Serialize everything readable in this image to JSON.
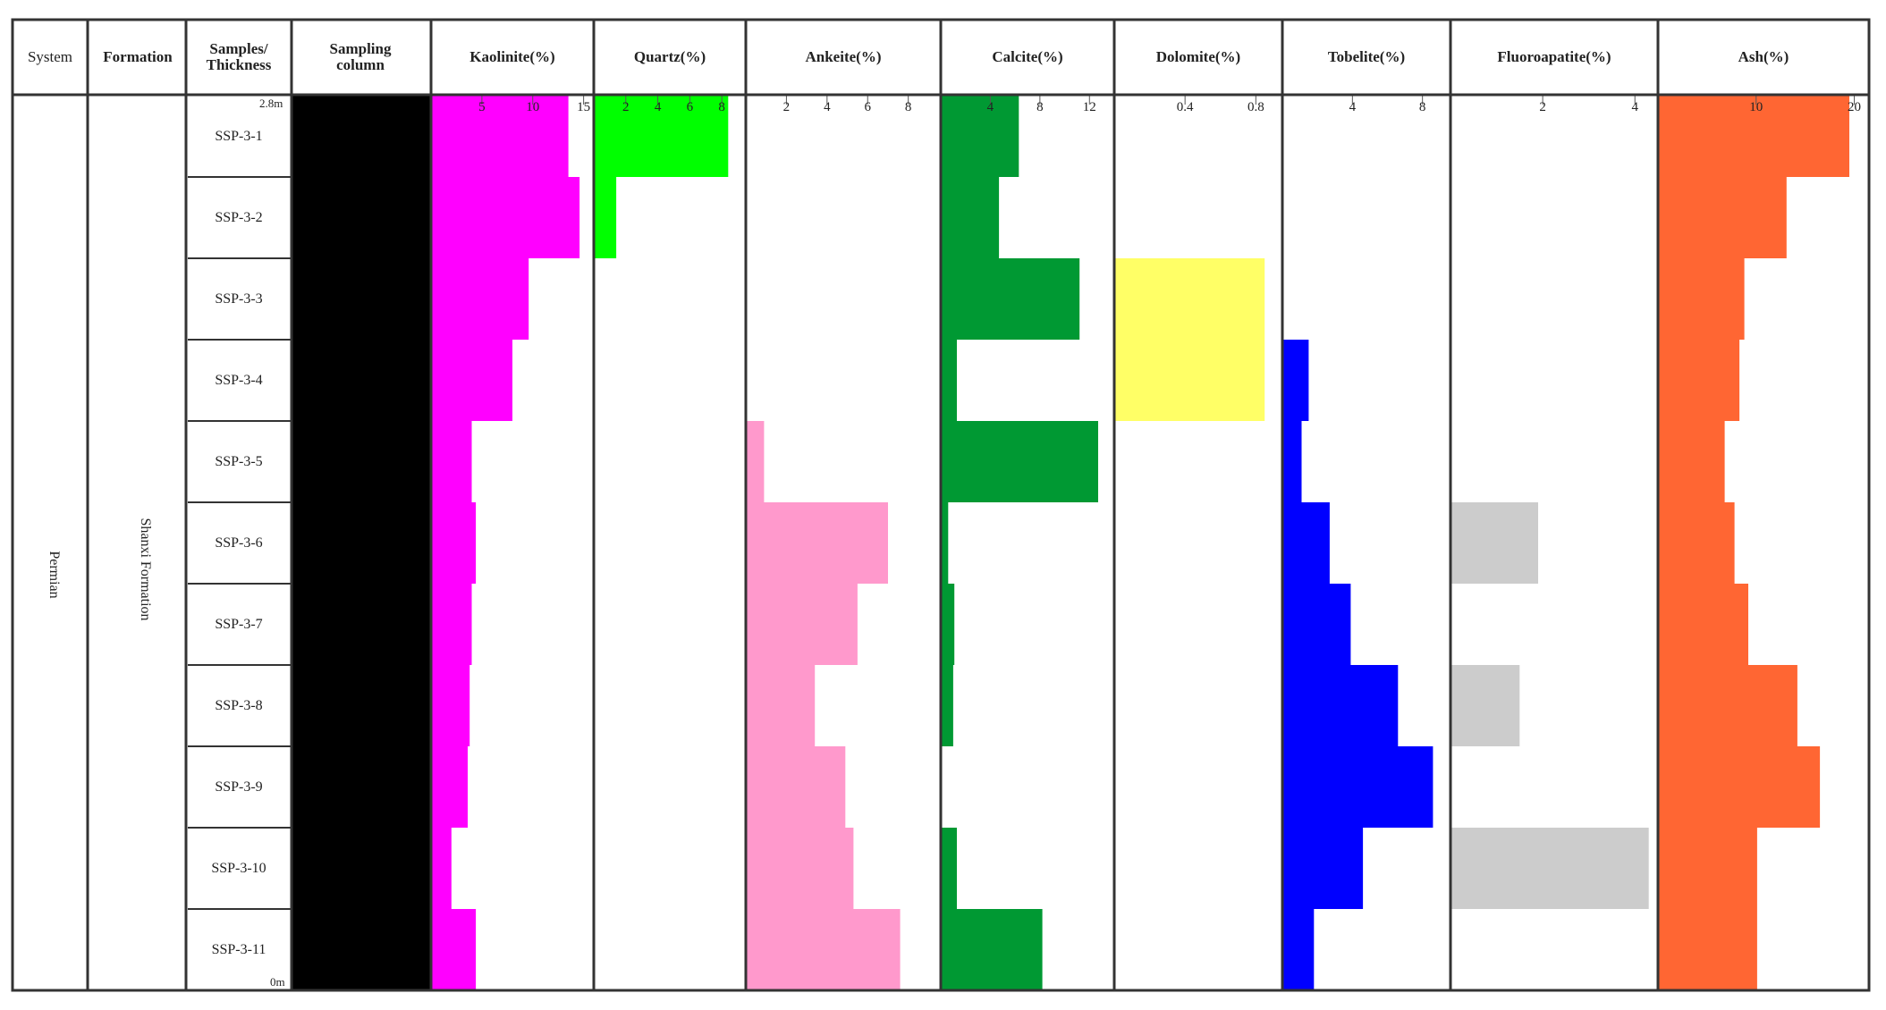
{
  "headers": {
    "system": "System",
    "formation": "Formation",
    "samples_line1": "Samples/",
    "samples_line2": "Thickness",
    "column_line1": "Sampling",
    "column_line2": "column"
  },
  "system_value": "Permian",
  "formation_value": "Shanxi Formation",
  "scale_top": "2.8m",
  "scale_bottom": "0m",
  "samples": [
    "SSP-3-1",
    "SSP-3-2",
    "SSP-3-3",
    "SSP-3-4",
    "SSP-3-5",
    "SSP-3-6",
    "SSP-3-7",
    "SSP-3-8",
    "SSP-3-9",
    "SSP-3-10",
    "SSP-3-11"
  ],
  "colors": {
    "border": "#333333",
    "sampling_column": "#000000"
  },
  "chart_data": {
    "type": "bar",
    "orientation": "horizontal-step",
    "categories": [
      "SSP-3-1",
      "SSP-3-2",
      "SSP-3-3",
      "SSP-3-4",
      "SSP-3-5",
      "SSP-3-6",
      "SSP-3-7",
      "SSP-3-8",
      "SSP-3-9",
      "SSP-3-10",
      "SSP-3-11"
    ],
    "series": [
      {
        "name": "Kaolinite(%)",
        "color": "#ff00ff",
        "xlim": [
          0,
          16
        ],
        "ticks": [
          "5",
          "10",
          "15"
        ],
        "tick_values": [
          5,
          10,
          15
        ],
        "values": [
          13.5,
          14.6,
          9.6,
          8.0,
          4.0,
          4.4,
          4.0,
          3.8,
          3.6,
          2.0,
          4.4
        ]
      },
      {
        "name": "Quartz(%)",
        "color": "#00ff00",
        "xlim": [
          0,
          9.5
        ],
        "ticks": [
          "2",
          "4",
          "6",
          "8"
        ],
        "tick_values": [
          2,
          4,
          6,
          8
        ],
        "values": [
          8.4,
          1.4,
          0,
          0,
          0,
          0,
          0,
          0,
          0,
          0,
          0
        ]
      },
      {
        "name": "Ankeite(%)",
        "color": "#ff99cc",
        "xlim": [
          0,
          9.6
        ],
        "ticks": [
          "2",
          "4",
          "6",
          "8"
        ],
        "tick_values": [
          2,
          4,
          6,
          8
        ],
        "values": [
          0,
          0,
          0,
          0,
          0.9,
          7.0,
          5.5,
          3.4,
          4.9,
          5.3,
          7.6
        ]
      },
      {
        "name": "Calcite(%)",
        "color": "#009933",
        "xlim": [
          0,
          14
        ],
        "ticks": [
          "4",
          "8",
          "12"
        ],
        "tick_values": [
          4,
          8,
          12
        ],
        "values": [
          6.3,
          4.7,
          11.2,
          1.3,
          12.7,
          0.6,
          1.1,
          1.0,
          0,
          1.3,
          8.2
        ]
      },
      {
        "name": "Dolomite(%)",
        "color": "#ffff66",
        "xlim": [
          0,
          0.95
        ],
        "ticks": [
          "0.4",
          "0.8"
        ],
        "tick_values": [
          0.4,
          0.8
        ],
        "values": [
          0,
          0,
          0.85,
          0.85,
          0,
          0,
          0,
          0,
          0,
          0,
          0
        ]
      },
      {
        "name": "Tobelite(%)",
        "color": "#0000ff",
        "xlim": [
          0,
          9.6
        ],
        "ticks": [
          "4",
          "8"
        ],
        "tick_values": [
          4,
          8
        ],
        "values": [
          0,
          0,
          0,
          1.5,
          1.1,
          2.7,
          3.9,
          6.6,
          8.6,
          4.6,
          1.8
        ]
      },
      {
        "name": "Fluoroapatite(%)",
        "color": "#cccccc",
        "xlim": [
          0,
          4.5
        ],
        "ticks": [
          "2",
          "4"
        ],
        "tick_values": [
          2,
          4
        ],
        "values": [
          0,
          0,
          0,
          0,
          0,
          1.9,
          0,
          1.5,
          0,
          4.3,
          0
        ]
      },
      {
        "name": "Ash(%)",
        "color": "#ff6633",
        "xlim": [
          0,
          21.5
        ],
        "ticks": [
          "10",
          "20"
        ],
        "tick_values": [
          10,
          20
        ],
        "values": [
          19.5,
          13.1,
          8.8,
          8.3,
          6.8,
          7.8,
          9.2,
          14.2,
          16.5,
          10.1,
          10.1
        ]
      }
    ]
  }
}
